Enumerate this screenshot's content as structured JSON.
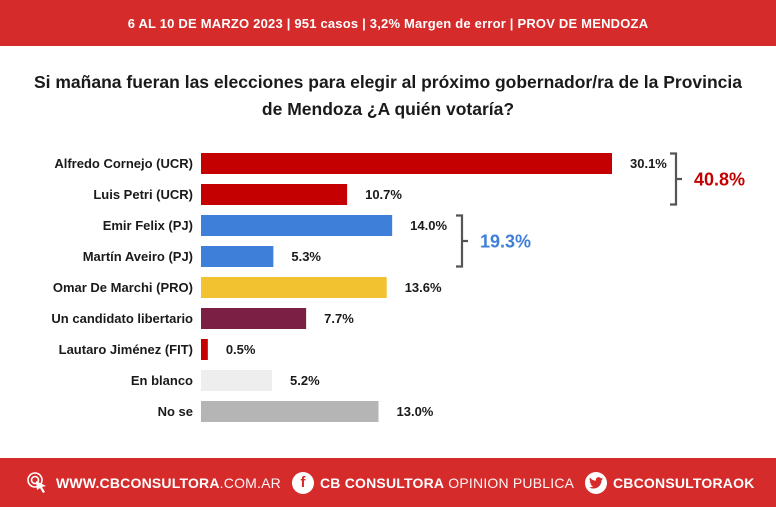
{
  "header": {
    "banner_text": "6 AL 10 DE MARZO 2023 | 951 casos  |  3,2% Margen de error  | PROV DE MENDOZA"
  },
  "question": {
    "line1": "Si mañana fueran las elecciones para elegir al próximo gobernador/ra de la Provincia",
    "line2": "de Mendoza ¿A quién votaría?"
  },
  "chart_data": {
    "type": "bar",
    "orientation": "horizontal",
    "categories": [
      "Alfredo Cornejo (UCR)",
      "Luis Petri (UCR)",
      "Emir Felix (PJ)",
      "Martín Aveiro (PJ)",
      "Omar De Marchi (PRO)",
      "Un candidato libertario",
      "Lautaro Jiménez (FIT)",
      "En blanco",
      "No se"
    ],
    "values": [
      30.1,
      10.7,
      14.0,
      5.3,
      13.6,
      7.7,
      0.5,
      5.2,
      13.0
    ],
    "value_labels": [
      "30.1%",
      "10.7%",
      "14.0%",
      "5.3%",
      "13.6%",
      "7.7%",
      "0.5%",
      "5.2%",
      "13.0%"
    ],
    "colors": [
      "#c40000",
      "#c40000",
      "#3d7fd9",
      "#3d7fd9",
      "#f2c230",
      "#7b1f45",
      "#c40000",
      "#eeeeee",
      "#b5b5b5"
    ],
    "xlim": [
      0,
      30.1
    ],
    "groups": [
      {
        "label": "40.8%",
        "from": 0,
        "to": 1,
        "color": "#c40000"
      },
      {
        "label": "19.3%",
        "from": 2,
        "to": 3,
        "color": "#3d7fd9"
      }
    ]
  },
  "footer": {
    "web_bold": "WWW.CBCONSULTORA",
    "web_light": ".COM.AR",
    "fb_bold": "CB CONSULTORA",
    "fb_light": " OPINION PUBLICA",
    "tw_bold": "CBCONSULTORAOK",
    "web_icon": "cursor-click-icon",
    "fb_icon": "facebook-icon",
    "tw_icon": "twitter-icon"
  }
}
